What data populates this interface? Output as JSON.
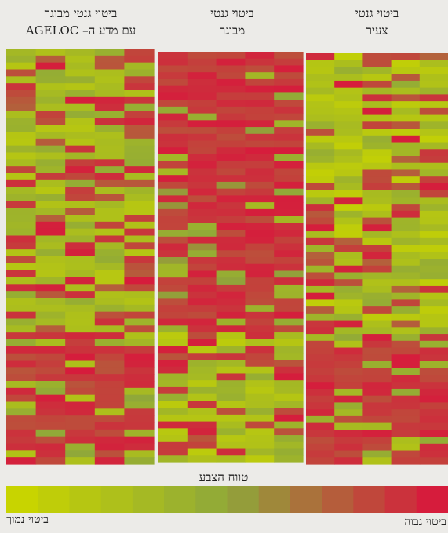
{
  "panels": [
    {
      "title_line1": "ביטוי גנטי מבוגר",
      "title_line2": "עם מדע ה– AGELOC"
    },
    {
      "title_line1": "ביטוי גנטי",
      "title_line2": "מבוגר"
    },
    {
      "title_line1": "ביטוי גנטי",
      "title_line2": "צעיר"
    }
  ],
  "color_scale": {
    "title": "טווח הצבע",
    "low_label": "ביטוי נמוך",
    "high_label": "ביטוי גבוה",
    "low_color": "#c8d400",
    "mid_color": "#8fa83a",
    "high_color": "#d61c3c"
  },
  "chart_data": {
    "type": "heatmap",
    "panels": [
      {
        "name": "ביטוי גנטי מבוגר עם מדע ה– AGELOC",
        "columns": 5,
        "rows": 60,
        "pattern": "mixed-then-high"
      },
      {
        "name": "ביטוי גנטי מבוגר",
        "columns": 5,
        "rows": 60,
        "pattern": "high-then-low"
      },
      {
        "name": "ביטוי גנטי צעיר",
        "columns": 5,
        "rows": 60,
        "pattern": "low-then-high"
      }
    ],
    "value_range": [
      0,
      1
    ],
    "scale_steps": 14
  }
}
